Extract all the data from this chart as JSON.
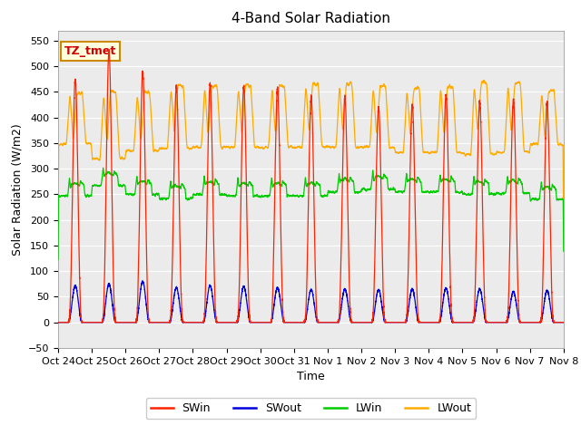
{
  "title": "4-Band Solar Radiation",
  "xlabel": "Time",
  "ylabel": "Solar Radiation (W/m2)",
  "ylim": [
    -50,
    570
  ],
  "yticks": [
    -50,
    0,
    50,
    100,
    150,
    200,
    250,
    300,
    350,
    400,
    450,
    500,
    550
  ],
  "annotation_label": "TZ_tmet",
  "annotation_color": "#cc0000",
  "annotation_bg": "#ffffdd",
  "annotation_border": "#cc8800",
  "colors": {
    "SWin": "#ff2200",
    "SWout": "#0000dd",
    "LWin": "#00cc00",
    "LWout": "#ffaa00"
  },
  "background_color": "#ffffff",
  "plot_bg": "#ebebeb",
  "grid_color": "#ffffff",
  "num_days": 15,
  "tick_labels": [
    "Oct 24",
    "Oct 25",
    "Oct 26",
    "Oct 27",
    "Oct 28",
    "Oct 29",
    "Oct 30",
    "Oct 31",
    "Nov 1",
    "Nov 2",
    "Nov 3",
    "Nov 4",
    "Nov 5",
    "Nov 6",
    "Nov 7",
    "Nov 8"
  ],
  "sw_peaks": [
    475,
    530,
    490,
    462,
    465,
    460,
    455,
    440,
    440,
    420,
    425,
    445,
    430,
    435,
    430
  ],
  "sw_out_peaks": [
    72,
    75,
    80,
    68,
    72,
    70,
    68,
    64,
    65,
    64,
    65,
    67,
    65,
    60,
    62
  ],
  "lwin_base": [
    265,
    285,
    268,
    260,
    268,
    265,
    265,
    265,
    273,
    278,
    273,
    273,
    268,
    270,
    258
  ],
  "lwout_night": [
    348,
    320,
    335,
    340,
    342,
    342,
    342,
    342,
    342,
    342,
    332,
    332,
    328,
    332,
    348
  ],
  "lwout_peaks": [
    450,
    450,
    450,
    462,
    462,
    462,
    462,
    467,
    467,
    462,
    457,
    462,
    467,
    467,
    452
  ]
}
